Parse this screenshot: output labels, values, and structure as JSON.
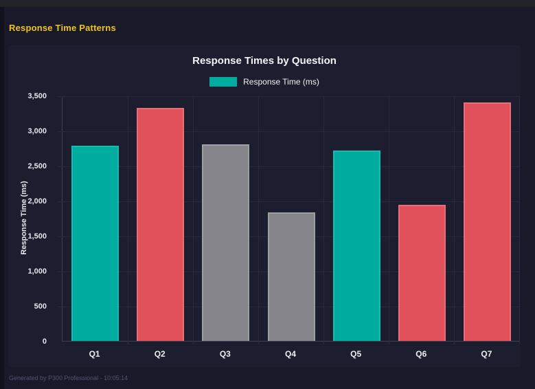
{
  "window": {
    "top_title": "Response Time Patterns",
    "footer": "Generated by P300 Professional - 10:05:14"
  },
  "chart_data": {
    "type": "bar",
    "title": "Response Times by Question",
    "legend": [
      {
        "label": "Response Time (ms)",
        "color": "#00aba0"
      }
    ],
    "legend_position": "top",
    "categories": [
      "Q1",
      "Q2",
      "Q3",
      "Q4",
      "Q5",
      "Q6",
      "Q7"
    ],
    "values": [
      2780,
      3320,
      2800,
      1830,
      2720,
      1940,
      3400
    ],
    "bar_colors": [
      "#00aba0",
      "#e0515c",
      "#85848a",
      "#85848a",
      "#00aba0",
      "#e0515c",
      "#e0515c"
    ],
    "bar_border_colors": [
      "#17bcb1",
      "#e66f78",
      "#9d9da2",
      "#9d9da2",
      "#17bcb1",
      "#e66f78",
      "#e66f78"
    ],
    "xlabel": "",
    "ylabel": "Response Time (ms)",
    "ylim": [
      0,
      3500
    ],
    "yticks": [
      0,
      500,
      1000,
      1500,
      2000,
      2500,
      3000,
      3500
    ],
    "ytick_labels": [
      "0",
      "500",
      "1,000",
      "1,500",
      "2,000",
      "2,500",
      "3,000",
      "3,500"
    ],
    "grid": true,
    "theme": {
      "page_bg": "#181a29",
      "card_bg": "#1c1e30",
      "grid_color": "#272a3e",
      "axis_color": "#3d4156",
      "title_color": "#f2f3f7",
      "tick_color": "#e6e7ee",
      "accent_yellow": "#f0c419"
    }
  }
}
